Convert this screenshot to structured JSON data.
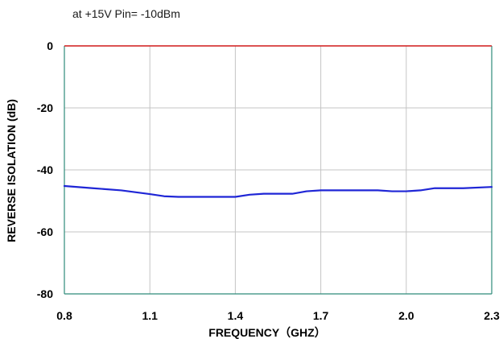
{
  "chart_data": {
    "type": "line",
    "subtitle": "at +15V Pin= -10dBm",
    "xlabel": "FREQUENCY（GHZ）",
    "ylabel": "REVERSE ISOLATION (dB)",
    "xlim": [
      0.8,
      2.3
    ],
    "ylim": [
      -80,
      0
    ],
    "x_ticks": [
      "0.8",
      "1.1",
      "1.4",
      "1.7",
      "2.0",
      "2.3"
    ],
    "y_ticks": [
      "0",
      "-20",
      "-40",
      "-60",
      "-80"
    ],
    "grid": true,
    "series": [
      {
        "x": [
          0.8,
          0.9,
          1.0,
          1.1,
          1.15,
          1.2,
          1.3,
          1.4,
          1.45,
          1.5,
          1.6,
          1.65,
          1.7,
          1.8,
          1.9,
          1.95,
          2.0,
          2.05,
          2.1,
          2.2,
          2.3
        ],
        "y": [
          -45.2,
          -45.9,
          -46.6,
          -47.8,
          -48.5,
          -48.7,
          -48.7,
          -48.7,
          -48.0,
          -47.7,
          -47.7,
          -46.9,
          -46.6,
          -46.6,
          -46.6,
          -46.9,
          -46.9,
          -46.6,
          -45.9,
          -45.9,
          -45.5
        ]
      }
    ],
    "colors": {
      "series_line": "#1f26d6",
      "grid": "#c4c4c4",
      "top_border": "#d11a1a",
      "frame": "#2e8b7a"
    }
  }
}
